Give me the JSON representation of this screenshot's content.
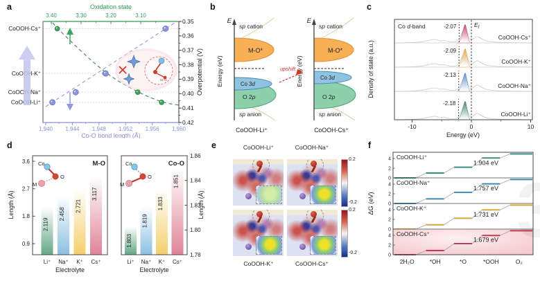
{
  "chart_data": {
    "figure": {
      "panels": [
        {
          "id": "a",
          "label": "a"
        },
        {
          "id": "b",
          "label": "b"
        },
        {
          "id": "c",
          "label": "c"
        },
        {
          "id": "d",
          "label": "d"
        },
        {
          "id": "e",
          "label": "e"
        },
        {
          "id": "f",
          "label": "f"
        }
      ],
      "watermark_digit": "3"
    },
    "panel_a": {
      "type": "scatter",
      "top_axis": {
        "title": "Oxidation state",
        "ticks": [
          "3.40",
          "3.30",
          "3.20",
          "3.10"
        ],
        "color": "#2f9e54"
      },
      "bottom_axis": {
        "title": "Co-O bond length (Å)",
        "ticks": [
          "1.940",
          "1.944",
          "1.948",
          "1.952",
          "1.956",
          "1.960"
        ],
        "color": "#8a8fd8"
      },
      "right_axis": {
        "title": "Overpotential (V)",
        "ticks": [
          "0.35",
          "0.36",
          "0.37",
          "0.38",
          "0.39",
          "0.40",
          "0.41",
          "0.42"
        ]
      },
      "row_labels": [
        {
          "label": "CoOOH-Cs⁺",
          "overpotential": 0.355
        },
        {
          "label": "CoOOH-K⁺",
          "overpotential": 0.386
        },
        {
          "label": "CoOOH-Na⁺",
          "overpotential": 0.399
        },
        {
          "label": "CoOOH-Li⁺",
          "overpotential": 0.406
        }
      ],
      "series": [
        {
          "name": "Co-O bond length",
          "axis": "bottom",
          "color": "#8f94da",
          "points": [
            {
              "cation": "Li⁺",
              "x": 1.941,
              "y": 0.406
            },
            {
              "cation": "Na⁺",
              "x": 1.9445,
              "y": 0.399
            },
            {
              "cation": "K⁺",
              "x": 1.949,
              "y": 0.386
            },
            {
              "cation": "Cs⁺",
              "x": 1.958,
              "y": 0.355
            }
          ]
        },
        {
          "name": "Oxidation state",
          "axis": "top",
          "color": "#3ea45c",
          "points": [
            {
              "cation": "Cs⁺",
              "x": 3.38,
              "y": 0.355
            },
            {
              "cation": "K⁺",
              "x": 3.22,
              "y": 0.386
            },
            {
              "cation": "Na⁺",
              "x": 3.11,
              "y": 0.399
            },
            {
              "cation": "Li⁺",
              "x": 3.03,
              "y": 0.406
            }
          ]
        }
      ],
      "inset_label": "M–O"
    },
    "panel_b": {
      "type": "diagram",
      "texts": {
        "axis": "E",
        "ylabel": "Energy (eV)",
        "sp_cation": "sp cation",
        "sp_anion": "sp anion",
        "mo_band": "M-O*",
        "co3d": "Co 3d",
        "o2p": "O 2p",
        "arrow": "upshift"
      },
      "diagrams": [
        {
          "label": "CoOOH-Li⁺",
          "co3d_y": 121,
          "o2p_y": 137
        },
        {
          "label": "CoOOH-Cs⁺",
          "co3d_y": 112,
          "o2p_y": 137
        }
      ],
      "colors": {
        "mo": "#f7b055",
        "mo_stroke": "#dd8f33",
        "co3d": "#8fc3e0",
        "co3d_stroke": "#4a8cb3",
        "o2p": "#8ed0ab",
        "o2p_stroke": "#4aa378",
        "arrow": "#d93025"
      }
    },
    "panel_c": {
      "type": "line",
      "header": "Co d-band",
      "fermi_label": "Ef",
      "xlabel": "Energy (eV)",
      "ylabel": "Density of state (a.u.)",
      "x_ticks": [
        -10,
        0,
        10
      ],
      "traces": [
        {
          "label": "CoOOH-Cs⁺",
          "d_band_center": -2.07,
          "color": "#c34d6d"
        },
        {
          "label": "CoOOH-K⁺",
          "d_band_center": -2.09,
          "color": "#e0a64e"
        },
        {
          "label": "CoOOH-Na⁺",
          "d_band_center": -2.13,
          "color": "#5d8fc6"
        },
        {
          "label": "CoOOH-Li⁺",
          "d_band_center": -2.18,
          "color": "#46876a"
        }
      ]
    },
    "panel_d": {
      "type": "bar",
      "categories": [
        "Li⁺",
        "Na⁺",
        "K⁺",
        "Cs⁺"
      ],
      "xlabel": "Electrolyte",
      "ylabel": "Length (Å)",
      "bar_colors": [
        "#63a886",
        "#8cc0e2",
        "#f5cf6b",
        "#df8496"
      ],
      "atom_labels": {
        "co": "Co",
        "o": "O",
        "m": "M"
      },
      "charts": [
        {
          "title": "M-O",
          "axis_side": "left",
          "yticks": [
            "0.9",
            "1.8",
            "2.7",
            "3.6"
          ],
          "values": [
            2.119,
            2.458,
            2.721,
            3.117
          ],
          "value_labels": [
            "2.119",
            "2.458",
            "2.721",
            "3.117"
          ],
          "dashed_bond": "mo"
        },
        {
          "title": "Co-O",
          "axis_side": "right",
          "yticks": [
            "1.78",
            "1.80",
            "1.82",
            "1.84",
            "1.86"
          ],
          "values": [
            1.803,
            1.819,
            1.833,
            1.851
          ],
          "value_labels": [
            "1.803",
            "1.819",
            "1.833",
            "1.851"
          ],
          "dashed_bond": "coo"
        }
      ]
    },
    "panel_e": {
      "type": "image-grid",
      "images": [
        {
          "title": "CoOOH-Li⁺",
          "label_pos": "top"
        },
        {
          "title": "CoOOH-Na⁺",
          "label_pos": "top"
        },
        {
          "title": "CoOOH-K⁺",
          "label_pos": "bottom"
        },
        {
          "title": "CoOOH-Cs⁺",
          "label_pos": "bottom"
        }
      ],
      "colorbars": [
        {
          "max": "0.2",
          "min": "-0.2"
        },
        {
          "max": "0.2",
          "min": "-0.2"
        }
      ]
    },
    "panel_f": {
      "type": "line",
      "ylabel": "ΔG (eV)",
      "yticks": [
        0,
        2,
        4
      ],
      "x_labels": [
        "2H₂O",
        "*OH",
        "*O",
        "*OOH",
        "O₂"
      ],
      "subpanels": [
        {
          "label": "CoOOH-Li⁺",
          "color": "#3a8e7d",
          "steps": [
            0,
            1.0,
            2.2,
            4.1,
            4.95
          ],
          "barrier": "1.904 eV",
          "highlight": false
        },
        {
          "label": "CoOOH-Na⁺",
          "color": "#3f87b0",
          "steps": [
            0,
            0.95,
            2.3,
            4.06,
            4.95
          ],
          "barrier": "1.757 eV",
          "highlight": false
        },
        {
          "label": "CoOOH-K⁺",
          "color": "#d4a93c",
          "steps": [
            0,
            0.9,
            2.24,
            3.97,
            4.95
          ],
          "barrier": "1.731 eV",
          "highlight": false
        },
        {
          "label": "CoOOH-Cs⁺",
          "color": "#c13b52",
          "steps": [
            0,
            0.85,
            2.28,
            3.96,
            4.95
          ],
          "barrier": "1.679 eV",
          "highlight": true
        }
      ]
    }
  }
}
